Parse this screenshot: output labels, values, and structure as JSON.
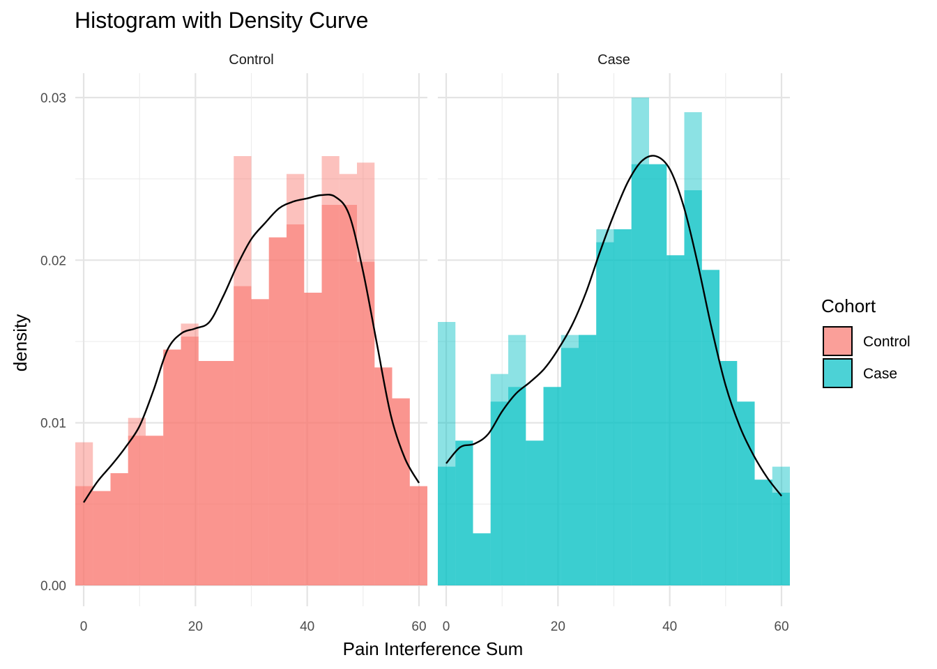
{
  "chart_data": {
    "type": "bar",
    "subtype": "faceted histogram with density curve",
    "title": "Histogram with Density Curve",
    "xlabel": "Pain Interference Sum",
    "ylabel": "density",
    "xlim": [
      -1.5,
      61.5
    ],
    "ylim": [
      0,
      0.03
    ],
    "x_ticks": [
      0,
      20,
      40,
      60
    ],
    "x_tick_labels": [
      "0",
      "20",
      "40",
      "60"
    ],
    "y_ticks": [
      0,
      0.01,
      0.02,
      0.03
    ],
    "y_tick_labels": [
      "0.00",
      "0.01",
      "0.02",
      "0.03"
    ],
    "grid": true,
    "legend_position": "right",
    "legend": {
      "title": "Cohort",
      "entries": [
        {
          "label": "Control",
          "color": "#F8766D"
        },
        {
          "label": "Case",
          "color": "#00BFC4"
        }
      ]
    },
    "facets": [
      {
        "strip_label": "Control",
        "color": "#F8766D",
        "histogram": {
          "bin_edges": [
            -1.5,
            1.65,
            4.8,
            7.95,
            11.1,
            14.25,
            17.4,
            20.55,
            23.7,
            26.85,
            30.0,
            33.15,
            36.3,
            39.45,
            42.6,
            45.75,
            48.9,
            52.05,
            55.2,
            58.35,
            61.5
          ],
          "layers": [
            [
              0.0088,
              0.0058,
              0.0069,
              0.0103,
              0.0092,
              0.0145,
              0.0161,
              0.0138,
              0.0138,
              0.0264,
              0.0176,
              0.0214,
              0.0253,
              0.018,
              0.0264,
              0.0253,
              0.026,
              0.0134,
              0.0115,
              0.0061
            ],
            [
              0.0061,
              0.0058,
              0.0069,
              0.0092,
              0.0092,
              0.0145,
              0.0153,
              0.0138,
              0.0138,
              0.0184,
              0.0176,
              0.0214,
              0.0222,
              0.018,
              0.0234,
              0.0234,
              0.0199,
              0.0134,
              0.0115,
              0.0061
            ],
            [
              0.0061,
              0.0058,
              0.0069,
              0.0092,
              0.0092,
              0.0145,
              0.0153,
              0.0138,
              0.0138,
              0.0184,
              0.0176,
              0.0214,
              0.0222,
              0.018,
              0.0234,
              0.0234,
              0.0199,
              0.0134,
              0.0115,
              0.0061
            ]
          ]
        },
        "density": {
          "x": [
            0,
            2.5,
            5,
            7.5,
            10,
            12.5,
            15,
            17.5,
            20,
            22.5,
            25,
            27.5,
            30,
            32.5,
            35,
            37.5,
            40,
            42.5,
            45,
            47.5,
            50,
            52.5,
            55,
            57.5,
            60
          ],
          "y": [
            0.0051,
            0.0064,
            0.0074,
            0.0085,
            0.0098,
            0.012,
            0.0145,
            0.0155,
            0.0158,
            0.0162,
            0.0178,
            0.0197,
            0.0213,
            0.0223,
            0.0232,
            0.0236,
            0.0238,
            0.024,
            0.0239,
            0.0228,
            0.0193,
            0.0148,
            0.0104,
            0.0078,
            0.0063
          ]
        }
      },
      {
        "strip_label": "Case",
        "color": "#00BFC4",
        "histogram": {
          "bin_edges": [
            -1.5,
            1.65,
            4.8,
            7.95,
            11.1,
            14.25,
            17.4,
            20.55,
            23.7,
            26.85,
            30.0,
            33.15,
            36.3,
            39.45,
            42.6,
            45.75,
            48.9,
            52.05,
            55.2,
            58.35,
            61.5
          ],
          "layers": [
            [
              0.0162,
              0.0089,
              0.0032,
              0.013,
              0.0154,
              0.0089,
              0.0122,
              0.0154,
              0.0154,
              0.0219,
              0.0219,
              0.03,
              0.0259,
              0.0203,
              0.0291,
              0.0194,
              0.0138,
              0.0113,
              0.0065,
              0.0073
            ],
            [
              0.0073,
              0.0089,
              0.0032,
              0.0113,
              0.0122,
              0.0089,
              0.0122,
              0.0146,
              0.0154,
              0.0211,
              0.0219,
              0.0259,
              0.0259,
              0.0203,
              0.0243,
              0.0194,
              0.0138,
              0.0113,
              0.0065,
              0.0057
            ],
            [
              0.0073,
              0.0089,
              0.0032,
              0.0113,
              0.0122,
              0.0089,
              0.0122,
              0.0146,
              0.0154,
              0.0211,
              0.0219,
              0.0259,
              0.0259,
              0.0203,
              0.0243,
              0.0194,
              0.0138,
              0.0113,
              0.0065,
              0.0057
            ]
          ]
        },
        "density": {
          "x": [
            0,
            2.5,
            5,
            7.5,
            10,
            12.5,
            15,
            17.5,
            20,
            22.5,
            25,
            27.5,
            30,
            32.5,
            35,
            37.5,
            40,
            42.5,
            45,
            47.5,
            50,
            52.5,
            55,
            57.5,
            60
          ],
          "y": [
            0.0075,
            0.0085,
            0.0087,
            0.0093,
            0.0107,
            0.0118,
            0.0125,
            0.0133,
            0.0145,
            0.016,
            0.018,
            0.0205,
            0.0228,
            0.0248,
            0.0261,
            0.0264,
            0.0256,
            0.0233,
            0.0198,
            0.0158,
            0.0123,
            0.0098,
            0.008,
            0.0066,
            0.0055
          ]
        }
      }
    ]
  }
}
